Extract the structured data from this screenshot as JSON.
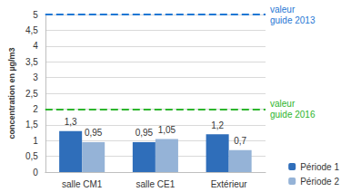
{
  "chart_data": {
    "type": "bar",
    "y_label": "concentration en µg/m3",
    "categories": [
      "salle CM1",
      "salle CE1",
      "Extérieur"
    ],
    "series": [
      {
        "name": "Période 1",
        "color": "#2f6eba",
        "values": [
          1.3,
          0.95,
          1.2
        ],
        "value_labels": [
          "1,3",
          "0,95",
          "1,2"
        ]
      },
      {
        "name": "Période 2",
        "color": "#95b3d7",
        "values": [
          0.95,
          1.05,
          0.7
        ],
        "value_labels": [
          "0,95",
          "1,05",
          "0,7"
        ]
      }
    ],
    "ylim": [
      0,
      5
    ],
    "yticks": [
      0,
      {
        "value": 0.5,
        "label": "0,5"
      },
      1,
      {
        "value": 1.5,
        "label": "1,5"
      },
      2,
      {
        "value": 2.5,
        "label": "2,5"
      },
      3,
      {
        "value": 3.5,
        "label": "3,5"
      },
      4,
      {
        "value": 4.5,
        "label": "4,5"
      },
      5
    ],
    "annotations": [
      {
        "y": 5,
        "text": "valeur guide 2013",
        "color": "#1f77d4",
        "line_style": "dashed"
      },
      {
        "y": 2,
        "text": "valeur guide 2016",
        "color": "#2db52d",
        "line_style": "dashed"
      }
    ],
    "data_labels": true,
    "grid": true,
    "legend": "bottom-right"
  }
}
